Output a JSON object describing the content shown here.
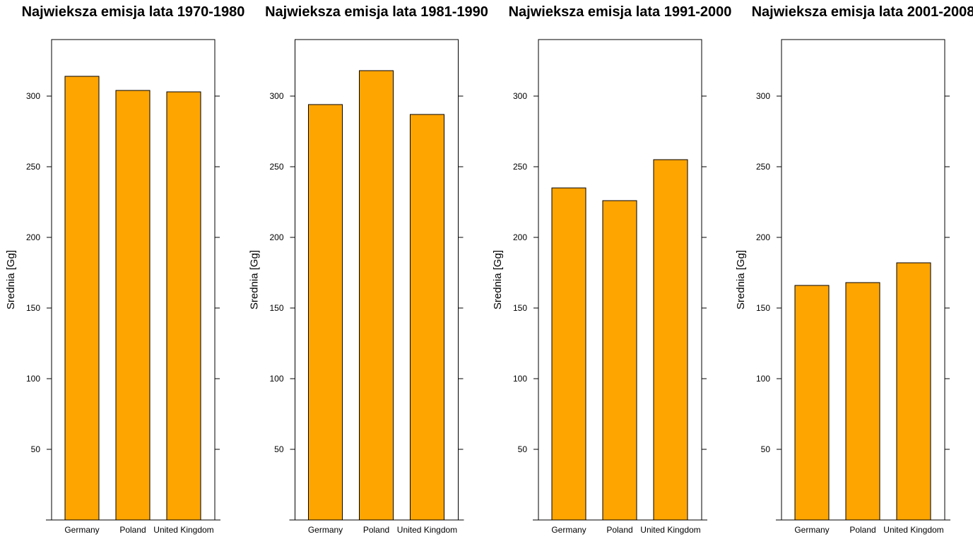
{
  "chart_data": [
    {
      "type": "bar",
      "title": "Najwieksza emisja lata 1970-1980",
      "ylabel": "Srednia [Gg]",
      "xlabel": "",
      "categories": [
        "Germany",
        "Poland",
        "United Kingdom"
      ],
      "values": [
        314,
        304,
        303
      ],
      "ylim": [
        0,
        340
      ],
      "yticks": [
        50,
        100,
        150,
        200,
        250,
        300
      ],
      "bar_color": "#FFA500"
    },
    {
      "type": "bar",
      "title": "Najwieksza emisja lata 1981-1990",
      "ylabel": "Srednia [Gg]",
      "xlabel": "",
      "categories": [
        "Germany",
        "Poland",
        "United Kingdom"
      ],
      "values": [
        294,
        318,
        287
      ],
      "ylim": [
        0,
        340
      ],
      "yticks": [
        50,
        100,
        150,
        200,
        250,
        300
      ],
      "bar_color": "#FFA500"
    },
    {
      "type": "bar",
      "title": "Najwieksza emisja lata 1991-2000",
      "ylabel": "Srednia [Gg]",
      "xlabel": "",
      "categories": [
        "Germany",
        "Poland",
        "United Kingdom"
      ],
      "values": [
        235,
        226,
        255
      ],
      "ylim": [
        0,
        340
      ],
      "yticks": [
        50,
        100,
        150,
        200,
        250,
        300
      ],
      "bar_color": "#FFA500"
    },
    {
      "type": "bar",
      "title": "Najwieksza emisja lata 2001-2008",
      "ylabel": "Srednia [Gg]",
      "xlabel": "",
      "categories": [
        "Germany",
        "Poland",
        "United Kingdom"
      ],
      "values": [
        166,
        168,
        182
      ],
      "ylim": [
        0,
        340
      ],
      "yticks": [
        50,
        100,
        150,
        200,
        250,
        300
      ],
      "bar_color": "#FFA500"
    }
  ]
}
